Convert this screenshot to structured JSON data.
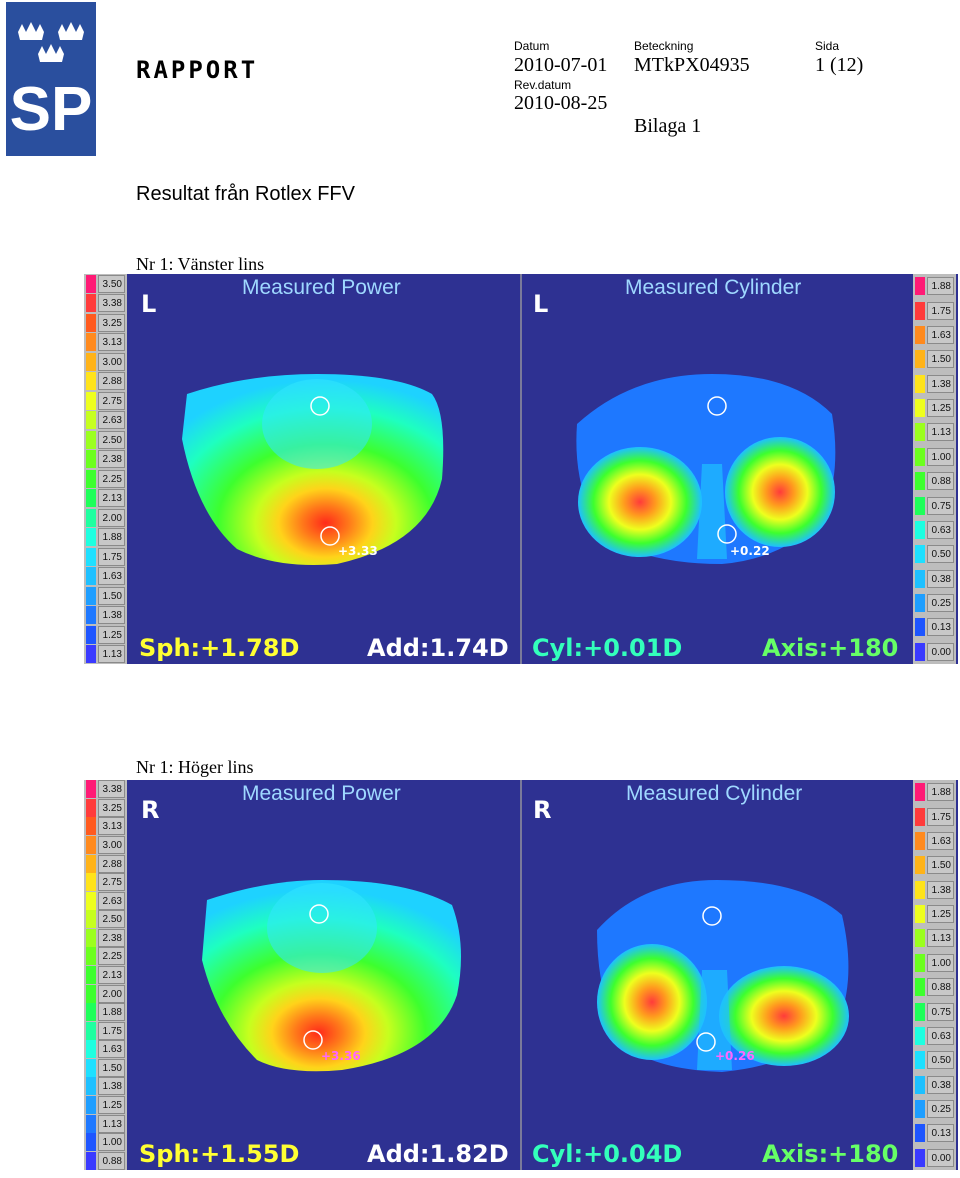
{
  "header": {
    "logo_text": "SP",
    "report_label": "RAPPORT",
    "datum_label": "Datum",
    "datum_value": "2010-07-01",
    "revdatum_label": "Rev.datum",
    "revdatum_value": "2010-08-25",
    "beteckning_label": "Beteckning",
    "beteckning_value": "MTkPX04935",
    "bilaga": "Bilaga 1",
    "sida_label": "Sida",
    "sida_value": "1 (12)"
  },
  "title": "Resultat från Rotlex FFV",
  "colors": {
    "panel_bg": "#2e3192",
    "scale_swatches": [
      "#ff1a75",
      "#ff3b3b",
      "#ff5a1e",
      "#ff8a1e",
      "#ffb319",
      "#ffe31a",
      "#eeff1e",
      "#c6ff1e",
      "#9bff1e",
      "#6cff1e",
      "#3dff2e",
      "#1eff5a",
      "#1effa0",
      "#1effe0",
      "#1ee0ff",
      "#1ec0ff",
      "#1e9eff",
      "#1e78ff",
      "#1e55ff",
      "#3a3aff"
    ]
  },
  "sections": [
    {
      "caption": "Nr 1: Vänster lins",
      "power": {
        "side": "L",
        "title": "Measured Power",
        "scale": [
          "3.50",
          "3.38",
          "3.25",
          "3.13",
          "3.00",
          "2.88",
          "2.75",
          "2.63",
          "2.50",
          "2.38",
          "2.25",
          "2.13",
          "2.00",
          "1.88",
          "1.75",
          "1.63",
          "1.50",
          "1.38",
          "1.25",
          "1.13"
        ],
        "marker": "+3.33",
        "sph": "Sph:+1.78D",
        "add": "Add:1.74D"
      },
      "cylinder": {
        "side": "L",
        "title": "Measured Cylinder",
        "scale": [
          "1.88",
          "1.75",
          "1.63",
          "1.50",
          "1.38",
          "1.25",
          "1.13",
          "1.00",
          "0.88",
          "0.75",
          "0.63",
          "0.50",
          "0.38",
          "0.25",
          "0.13",
          "0.00"
        ],
        "marker": "+0.22",
        "cyl": "Cyl:+0.01D",
        "axis": "Axis:+180"
      }
    },
    {
      "caption": "Nr 1: Höger lins",
      "power": {
        "side": "R",
        "title": "Measured Power",
        "scale": [
          "3.38",
          "3.25",
          "3.13",
          "3.00",
          "2.88",
          "2.75",
          "2.63",
          "2.50",
          "2.38",
          "2.25",
          "2.13",
          "2.00",
          "1.88",
          "1.75",
          "1.63",
          "1.50",
          "1.38",
          "1.25",
          "1.13",
          "1.00",
          "0.88"
        ],
        "marker": "+3.36",
        "sph": "Sph:+1.55D",
        "add": "Add:1.82D"
      },
      "cylinder": {
        "side": "R",
        "title": "Measured Cylinder",
        "scale": [
          "1.88",
          "1.75",
          "1.63",
          "1.50",
          "1.38",
          "1.25",
          "1.13",
          "1.00",
          "0.88",
          "0.75",
          "0.63",
          "0.50",
          "0.38",
          "0.25",
          "0.13",
          "0.00"
        ],
        "marker": "+0.26",
        "cyl": "Cyl:+0.04D",
        "axis": "Axis:+180"
      }
    }
  ]
}
